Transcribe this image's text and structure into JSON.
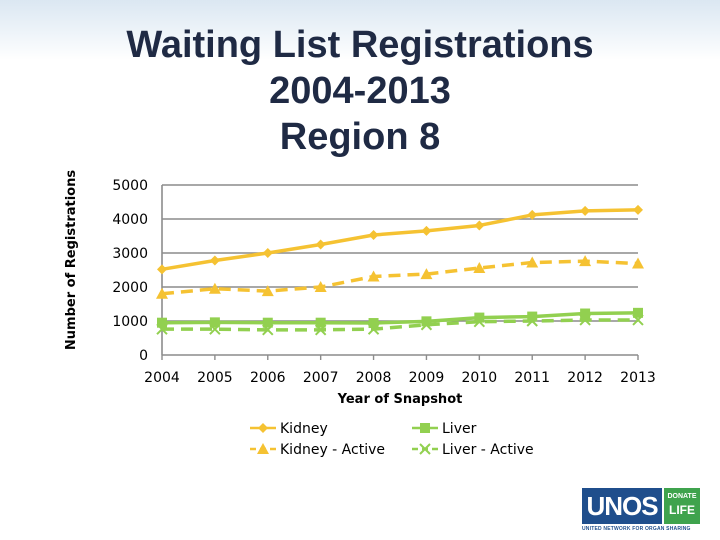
{
  "title_lines": [
    "Waiting List Registrations",
    "2004-2013",
    "Region 8"
  ],
  "logo": {
    "main": "UNOS",
    "donate_top": "DONATE",
    "donate_bottom": "LIFE",
    "subtitle": "UNITED NETWORK FOR ORGAN SHARING"
  },
  "chart_data": {
    "type": "line",
    "title": "Waiting List Registrations 2004-2013 Region 8",
    "xlabel": "Year of Snapshot",
    "ylabel": "Number of Registrations",
    "categories": [
      "2004",
      "2005",
      "2006",
      "2007",
      "2008",
      "2009",
      "2010",
      "2011",
      "2012",
      "2013"
    ],
    "ylim": [
      0,
      5000
    ],
    "yticks": [
      0,
      1000,
      2000,
      3000,
      4000,
      5000
    ],
    "grid": true,
    "legend_position": "bottom",
    "series": [
      {
        "name": "Kidney",
        "color": "#f5c232",
        "marker": "diamond",
        "dash": "solid",
        "values": [
          2520,
          2780,
          3000,
          3250,
          3530,
          3650,
          3810,
          4120,
          4240,
          4270
        ]
      },
      {
        "name": "Liver",
        "color": "#92d050",
        "marker": "square",
        "dash": "solid",
        "values": [
          950,
          960,
          950,
          950,
          940,
          990,
          1100,
          1130,
          1220,
          1240
        ]
      },
      {
        "name": "Kidney - Active",
        "color": "#f5c232",
        "marker": "triangle",
        "dash": "dashed",
        "values": [
          1800,
          1950,
          1880,
          2000,
          2310,
          2380,
          2560,
          2720,
          2760,
          2690
        ]
      },
      {
        "name": "Liver - Active",
        "color": "#92d050",
        "marker": "x",
        "dash": "dashed",
        "values": [
          760,
          760,
          740,
          740,
          760,
          890,
          980,
          1000,
          1030,
          1030
        ]
      }
    ]
  }
}
